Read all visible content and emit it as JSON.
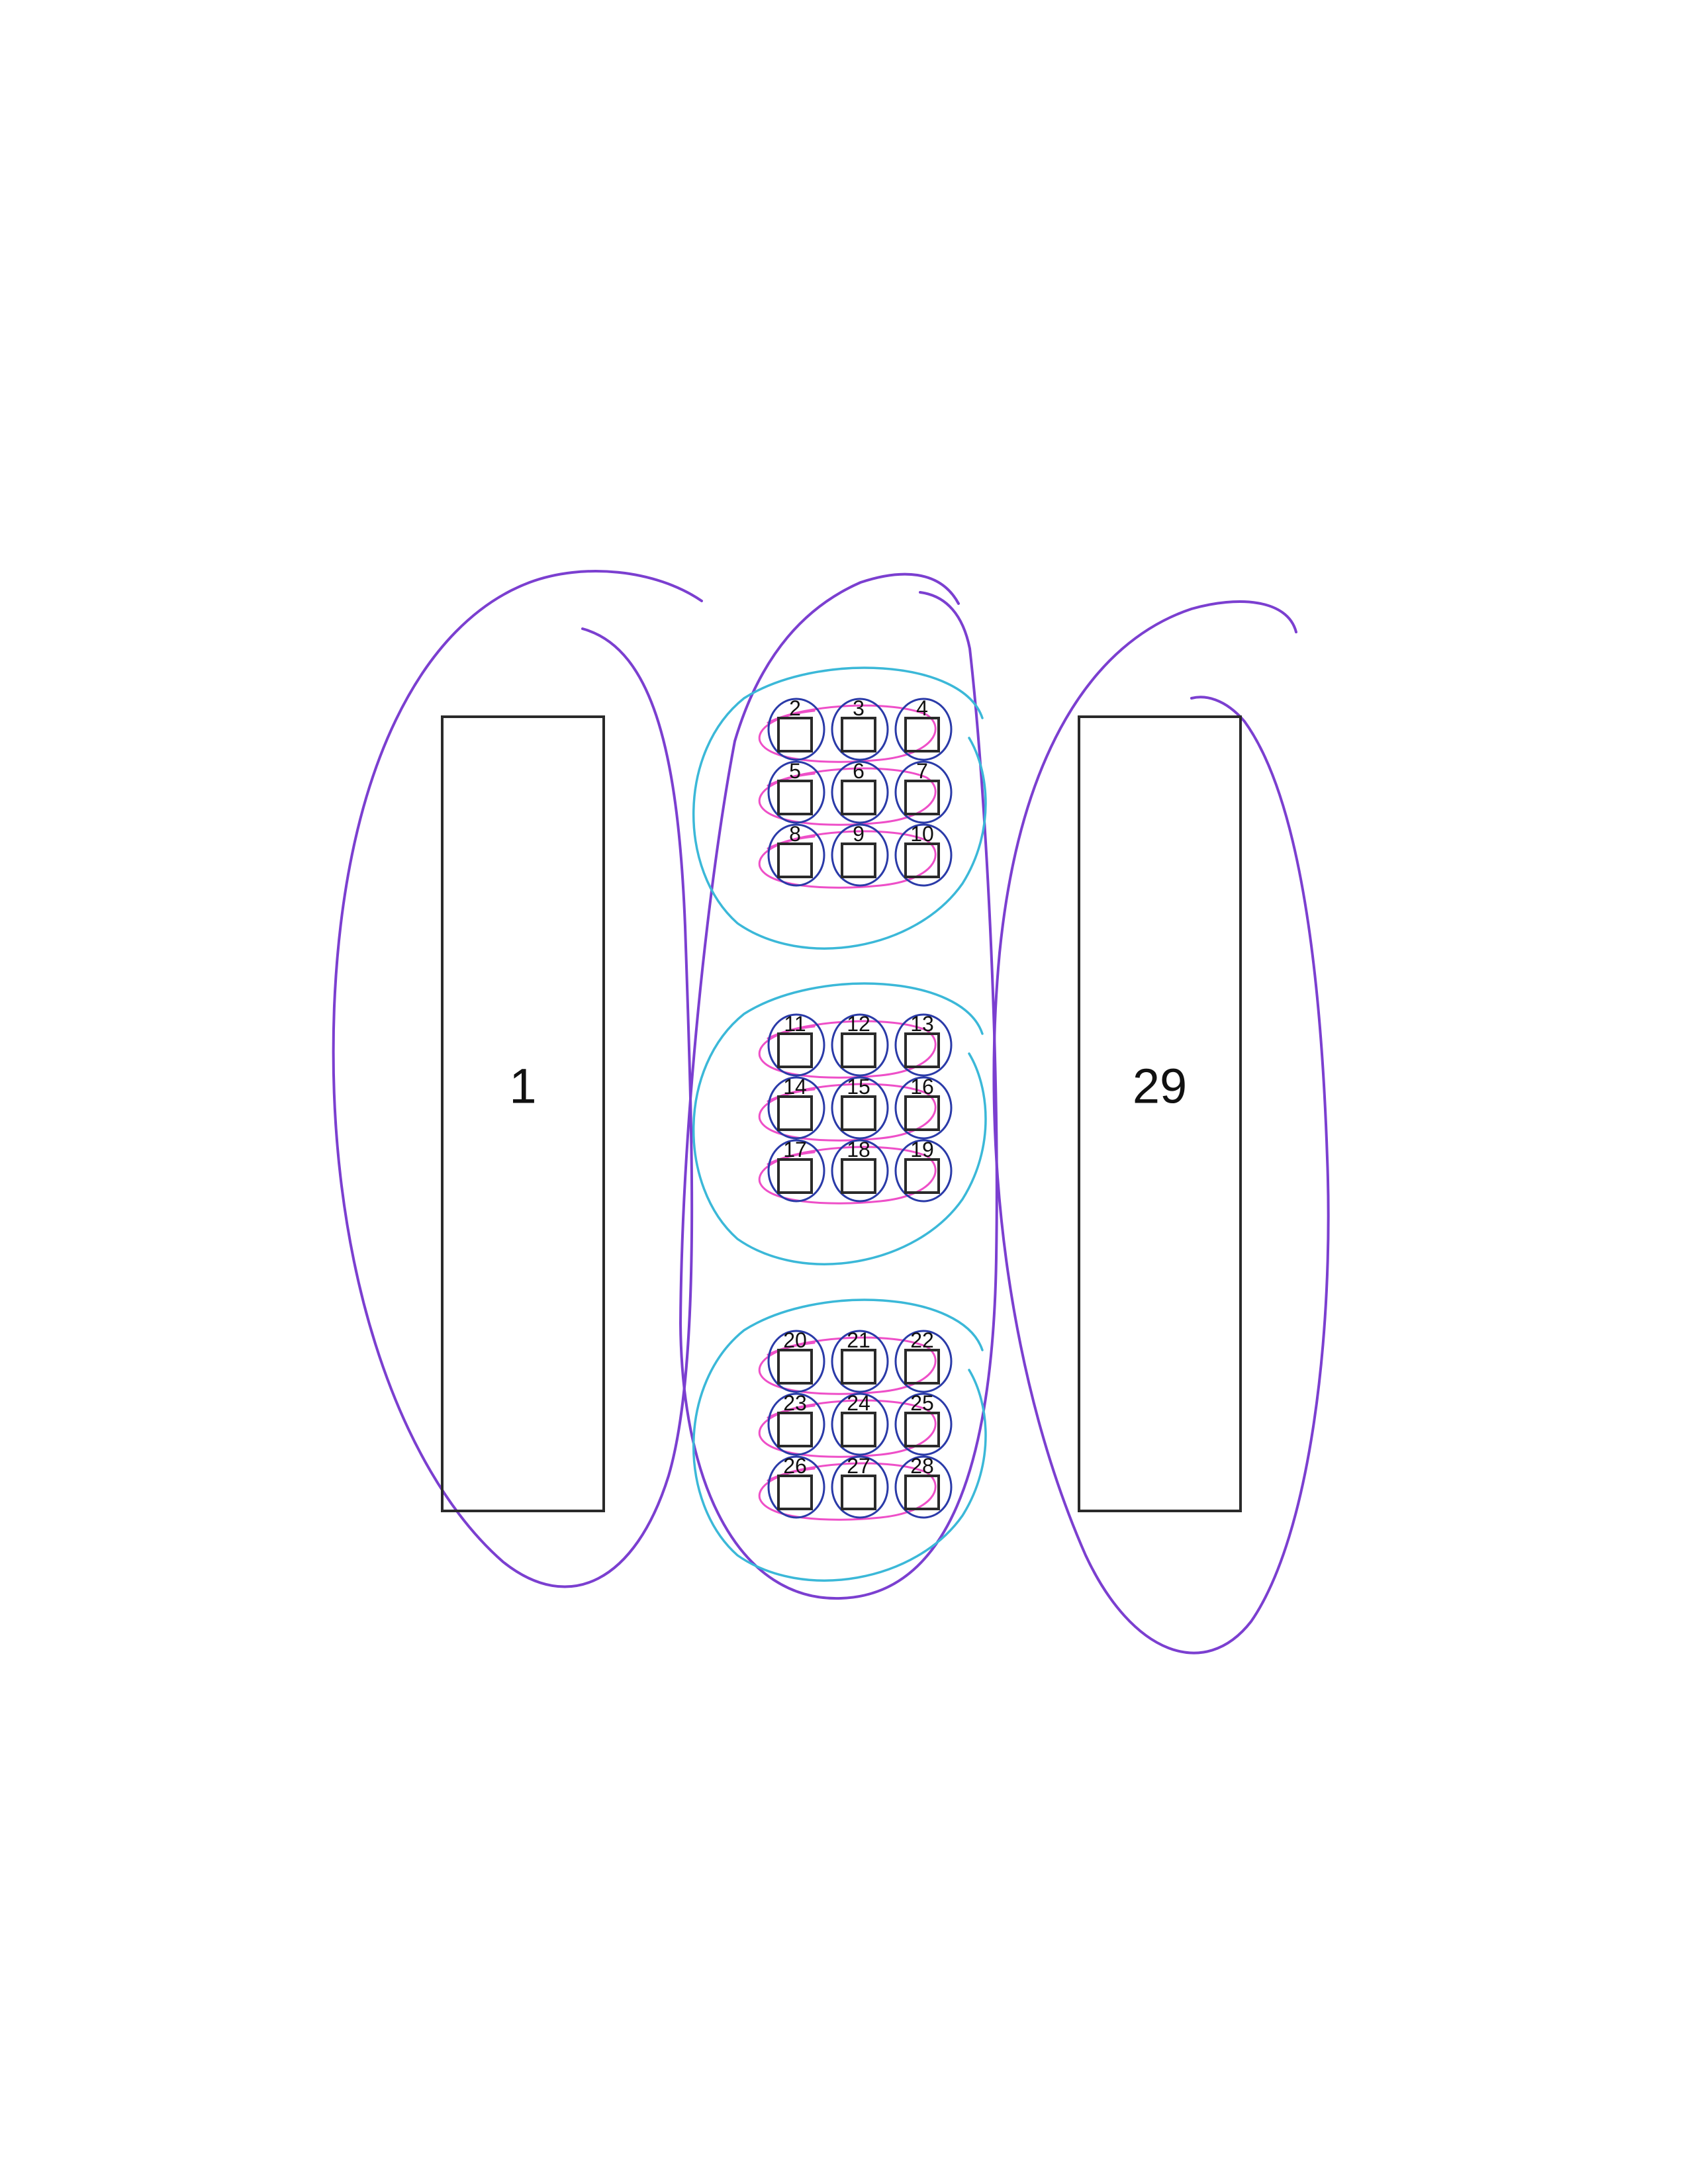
{
  "diagram": {
    "colors": {
      "box_stroke": "#2a2a2a",
      "label": "#111111",
      "outer_loop": "#7b3fd0",
      "group_loop": "#3bb8d8",
      "row_loop": "#ee4fc8",
      "item_loop": "#2a3aa8"
    },
    "large_boxes": [
      {
        "label": "1"
      },
      {
        "label": "29"
      }
    ],
    "groups": [
      {
        "items": [
          "2",
          "3",
          "4",
          "5",
          "6",
          "7",
          "8",
          "9",
          "10"
        ]
      },
      {
        "items": [
          "11",
          "12",
          "13",
          "14",
          "15",
          "16",
          "17",
          "18",
          "19"
        ]
      },
      {
        "items": [
          "20",
          "21",
          "22",
          "23",
          "24",
          "25",
          "26",
          "27",
          "28"
        ]
      }
    ]
  }
}
